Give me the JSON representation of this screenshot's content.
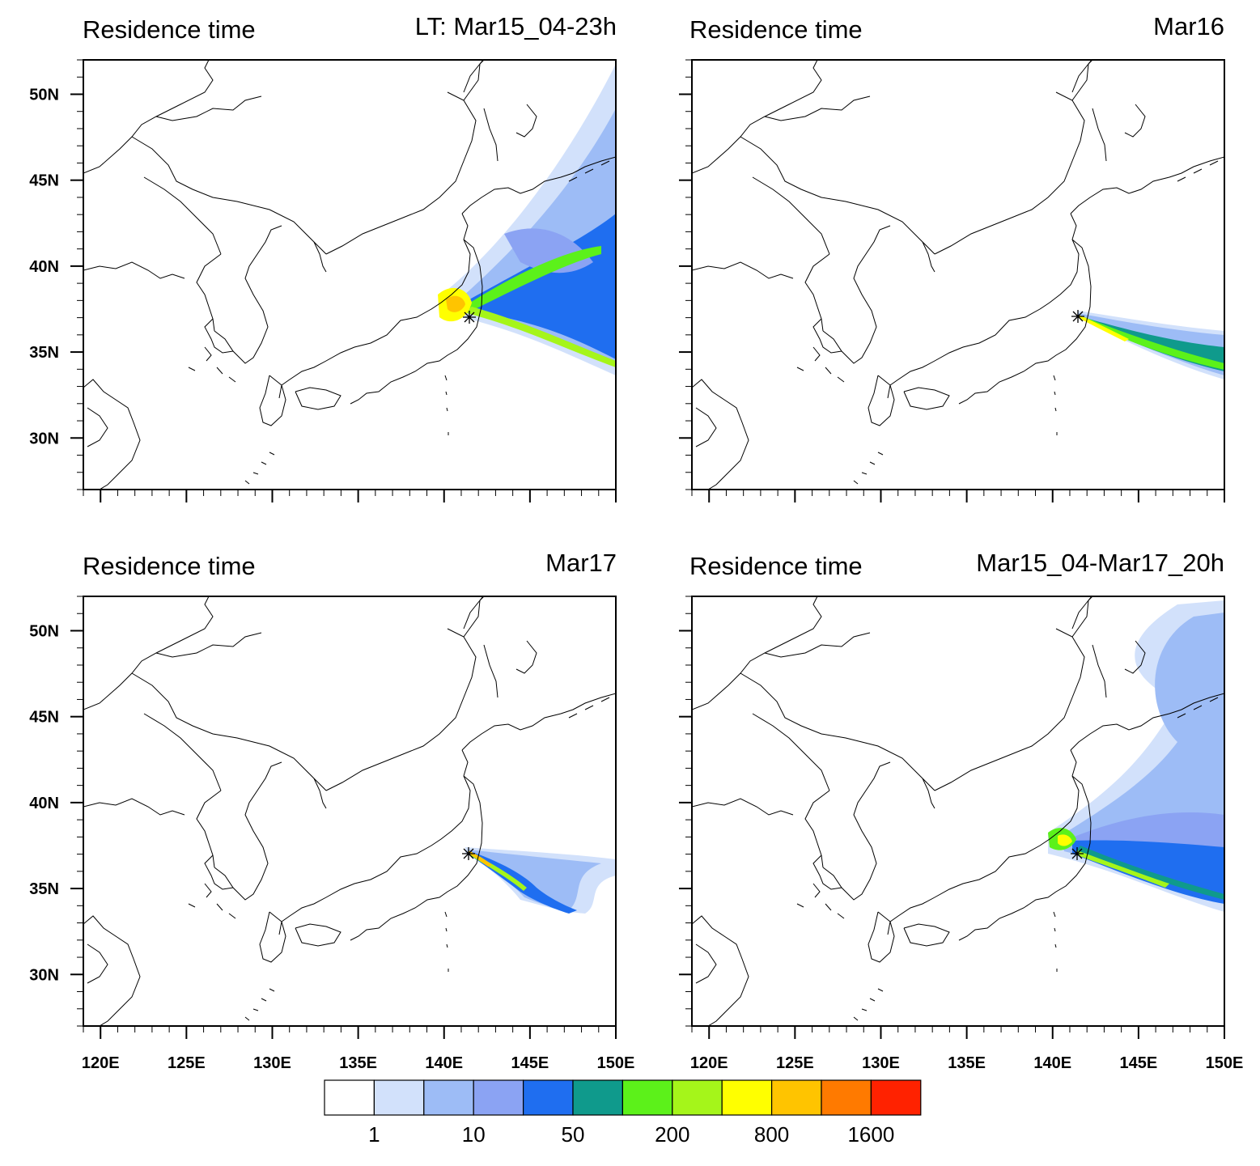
{
  "figure": {
    "panels": [
      {
        "id": "a",
        "title_left": "Residence time",
        "title_right": "LT: Mar15_04-23h",
        "show_x_labels": false
      },
      {
        "id": "b",
        "title_left": "Residence time",
        "title_right": "Mar16",
        "show_x_labels": false
      },
      {
        "id": "c",
        "title_left": "Residence time",
        "title_right": "Mar17",
        "show_x_labels": true
      },
      {
        "id": "d",
        "title_left": "Residence time",
        "title_right": "Mar15_04-Mar17_20h",
        "show_x_labels": true
      }
    ],
    "lat_labels": [
      "50N",
      "45N",
      "40N",
      "35N",
      "30N"
    ],
    "lat_values": [
      50,
      45,
      40,
      35,
      30
    ],
    "lon_labels": [
      "120E",
      "125E",
      "130E",
      "135E",
      "140E",
      "145E",
      "150E"
    ],
    "lon_values": [
      120,
      125,
      130,
      135,
      140,
      145,
      150
    ],
    "lon_range": [
      119,
      150
    ],
    "lat_range": [
      27,
      52
    ],
    "source_marker": {
      "lon": 141.0,
      "lat": 37.4,
      "symbol": "*"
    },
    "colorbar": {
      "colors": [
        "#ffffff",
        "#d2e1fb",
        "#9dbcf6",
        "#8ba3f3",
        "#1f6ef0",
        "#0f9a8c",
        "#5cf11a",
        "#a5f51a",
        "#ffff00",
        "#ffc400",
        "#ff7a00",
        "#ff2200"
      ],
      "labels": [
        "1",
        "10",
        "50",
        "200",
        "800",
        "1600"
      ]
    }
  }
}
